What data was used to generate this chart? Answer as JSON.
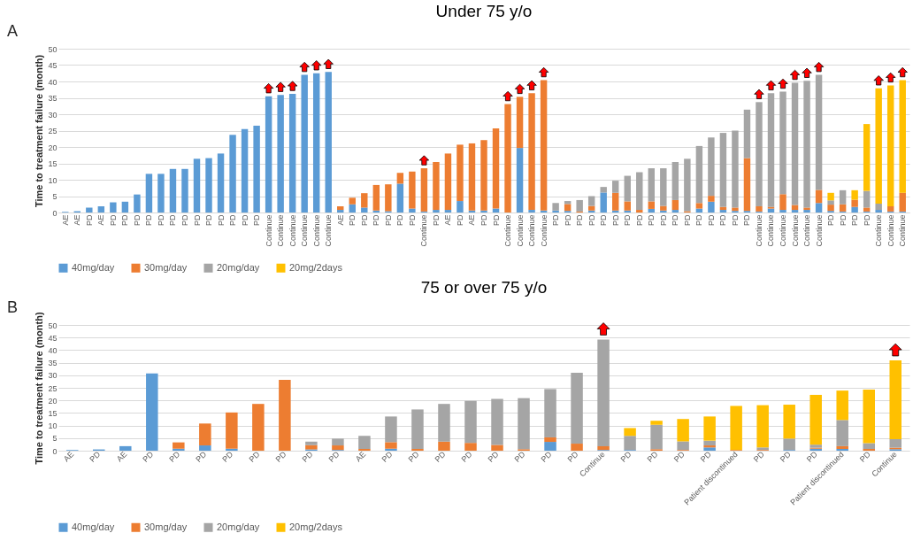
{
  "chart_data": [
    {
      "type": "bar",
      "title": "Under 75 y/o",
      "ylabel": "Time to treatment failure (month)",
      "stacked": true,
      "ylim": [
        0,
        50
      ],
      "yticks": [
        0,
        5,
        10,
        15,
        20,
        25,
        30,
        35,
        40,
        45,
        50
      ],
      "grid": "y",
      "legend": "bottom",
      "annotations": [
        "A"
      ],
      "categories": [
        "AE",
        "AE",
        "PD",
        "AE",
        "PD",
        "PD",
        "PD",
        "PD",
        "PD",
        "PD",
        "PD",
        "PD",
        "PD",
        "PD",
        "PD",
        "PD",
        "PD",
        "Continue",
        "Continue",
        "Continue",
        "Continue",
        "Continue",
        "Continue",
        "AE",
        "PD",
        "PD",
        "PD",
        "PD",
        "PD",
        "PD",
        "Continue",
        "PD",
        "AE",
        "PD",
        "AE",
        "PD",
        "PD",
        "Continue",
        "Continue",
        "Continue",
        "Continue",
        "PD",
        "PD",
        "PD",
        "PD",
        "PD",
        "PD",
        "PD",
        "PD",
        "PD",
        "PD",
        "PD",
        "PD",
        "PD",
        "PD",
        "PD",
        "PD",
        "PD",
        "Continue",
        "Continue",
        "Continue",
        "Continue",
        "Continue",
        "Continue",
        "PD",
        "PD",
        "PD",
        "PD",
        "Continue",
        "Continue",
        "Continue"
      ],
      "series": [
        {
          "name": "40mg/day",
          "color": "#5b9bd5",
          "values": [
            0.2,
            0.4,
            1.5,
            1.9,
            3.1,
            3.3,
            5.5,
            11.8,
            11.8,
            13.3,
            13.3,
            16.4,
            16.6,
            18.0,
            23.7,
            25.5,
            26.5,
            35.5,
            35.9,
            36.2,
            42.0,
            42.5,
            42.9,
            0.8,
            2.5,
            1.5,
            0.6,
            0.4,
            8.8,
            1.2,
            0.3,
            0.8,
            0.8,
            3.5,
            0.6,
            0.6,
            1.2,
            null,
            19.7,
            0.8,
            0.6,
            0.6,
            0.5,
            null,
            0.6,
            6.1,
            0.6,
            0.6,
            null,
            1.1,
            0.6,
            0.8,
            null,
            1.2,
            3.3,
            0.8,
            0.5,
            0.5,
            0.3,
            1.2,
            0.8,
            0.8,
            0.8,
            2.9,
            0.5,
            0.3,
            1.7,
            0.3,
            0.8,
            0.3,
            0.3
          ]
        },
        {
          "name": "30mg/day",
          "color": "#ed7d31",
          "values": [
            null,
            null,
            null,
            null,
            null,
            null,
            null,
            null,
            null,
            null,
            null,
            null,
            null,
            null,
            null,
            null,
            null,
            null,
            null,
            null,
            null,
            null,
            null,
            1.1,
            2.0,
            4.4,
            7.8,
            8.2,
            3.3,
            11.3,
            13.2,
            14.6,
            17.2,
            17.2,
            20.5,
            21.5,
            24.5,
            33.1,
            15.6,
            35.6,
            39.8,
            null,
            2.1,
            0.3,
            1.4,
            null,
            5.4,
            2.8,
            0.8,
            2.3,
            1.4,
            3.0,
            0.4,
            1.7,
            1.8,
            0.9,
            1.0,
            16.1,
            1.6,
            0.5,
            4.8,
            1.5,
            0.7,
            4.0,
            1.9,
            2.2,
            2.2,
            1.2,
            null,
            1.6,
            5.7
          ]
        },
        {
          "name": "20mg/day",
          "color": "#a5a5a5",
          "values": [
            null,
            null,
            null,
            null,
            null,
            null,
            null,
            null,
            null,
            null,
            null,
            null,
            null,
            null,
            null,
            null,
            null,
            null,
            null,
            null,
            null,
            null,
            null,
            null,
            null,
            null,
            null,
            null,
            null,
            null,
            null,
            null,
            null,
            null,
            null,
            null,
            null,
            null,
            null,
            null,
            null,
            2.3,
            0.9,
            3.5,
            3.0,
            1.7,
            3.7,
            7.8,
            11.5,
            10.1,
            11.5,
            11.6,
            16.0,
            17.4,
            17.8,
            22.6,
            23.5,
            14.8,
            31.8,
            34.7,
            31.3,
            37.3,
            38.7,
            35.1,
            1.3,
            4.3,
            null,
            5.1,
            1.9,
            null,
            null
          ]
        },
        {
          "name": "20mg/2days",
          "color": "#ffc000",
          "values": [
            null,
            null,
            null,
            null,
            null,
            null,
            null,
            null,
            null,
            null,
            null,
            null,
            null,
            null,
            null,
            null,
            null,
            null,
            null,
            null,
            null,
            null,
            null,
            null,
            null,
            null,
            null,
            null,
            null,
            null,
            null,
            null,
            null,
            null,
            null,
            null,
            null,
            null,
            null,
            null,
            null,
            null,
            null,
            null,
            null,
            null,
            null,
            null,
            null,
            null,
            null,
            null,
            null,
            null,
            null,
            null,
            null,
            null,
            null,
            null,
            null,
            null,
            null,
            null,
            2.3,
            null,
            2.9,
            20.4,
            35.2,
            36.9,
            34.4
          ]
        }
      ]
    },
    {
      "type": "bar",
      "title": "75 or over 75 y/o",
      "ylabel": "Time to treatment failure (month)",
      "stacked": true,
      "ylim": [
        0,
        50
      ],
      "yticks": [
        0,
        5,
        10,
        15,
        20,
        25,
        30,
        35,
        40,
        45,
        50
      ],
      "grid": "y",
      "legend": "bottom",
      "annotations": [
        "B"
      ],
      "categories": [
        "AE",
        "PD",
        "AE",
        "PD",
        "PD",
        "PD",
        "PD",
        "PD",
        "PD",
        "PD",
        "PD",
        "AE",
        "PD",
        "PD",
        "PD",
        "PD",
        "PD",
        "PD",
        "PD",
        "PD",
        "Continue",
        "PD",
        "PD",
        "PD",
        "PD",
        "Patient discontinued",
        "PD",
        "PD",
        "PD",
        "Patient discontinued",
        "PD",
        "Continue"
      ],
      "series": [
        {
          "name": "40mg/day",
          "color": "#5b9bd5",
          "values": [
            0.3,
            0.5,
            1.8,
            30.7,
            0.8,
            2.1,
            0.8,
            null,
            null,
            0.5,
            0.3,
            null,
            0.8,
            null,
            null,
            null,
            null,
            null,
            3.5,
            null,
            0.3,
            0.3,
            null,
            null,
            1.3,
            null,
            null,
            0.3,
            0.8,
            0.7,
            null,
            0.6
          ]
        },
        {
          "name": "30mg/day",
          "color": "#ed7d31",
          "values": [
            null,
            null,
            null,
            null,
            2.5,
            8.7,
            14.4,
            18.6,
            28.2,
            1.7,
            1.8,
            0.7,
            2.6,
            0.7,
            3.6,
            3.1,
            2.3,
            0.6,
            1.8,
            2.8,
            1.5,
            null,
            0.6,
            0.3,
            0.8,
            0.3,
            0.3,
            null,
            0.4,
            1.1,
            0.7,
            0.6
          ]
        },
        {
          "name": "20mg/day",
          "color": "#a5a5a5",
          "values": [
            null,
            null,
            null,
            null,
            null,
            null,
            null,
            null,
            null,
            1.4,
            2.7,
            5.2,
            10.2,
            15.7,
            15.0,
            16.7,
            18.3,
            20.3,
            19.2,
            28.2,
            42.4,
            5.6,
            9.7,
            3.4,
            1.9,
            null,
            1.0,
            4.5,
            1.2,
            10.4,
            2.3,
            3.4
          ]
        },
        {
          "name": "20mg/2days",
          "color": "#ffc000",
          "values": [
            null,
            null,
            null,
            null,
            null,
            null,
            null,
            null,
            null,
            null,
            null,
            null,
            null,
            null,
            null,
            null,
            null,
            null,
            null,
            null,
            null,
            3.1,
            1.6,
            8.9,
            9.6,
            17.5,
            16.8,
            13.5,
            19.8,
            11.7,
            21.3,
            31.3
          ]
        }
      ]
    }
  ]
}
